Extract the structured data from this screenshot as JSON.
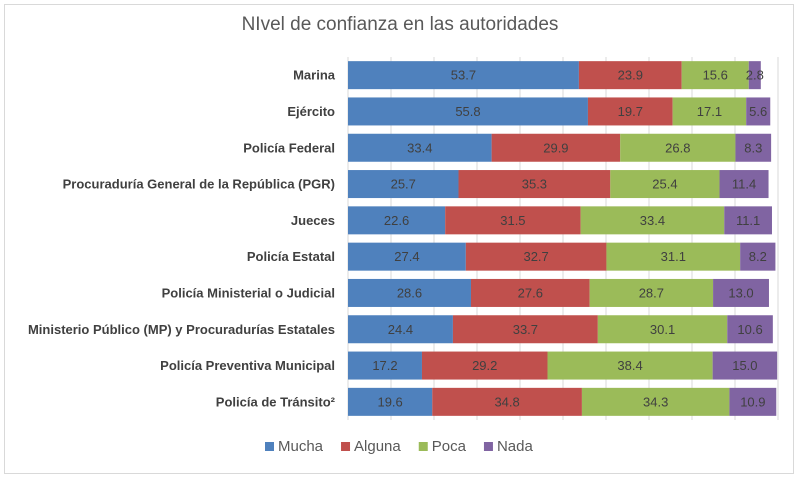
{
  "chart_data": {
    "type": "bar",
    "orientation": "horizontal",
    "stacked": true,
    "title": "NIvel de confianza en las autoridades",
    "categories": [
      "Marina",
      "Ejército",
      "Policía Federal",
      "Procuraduría General de la República (PGR)",
      "Jueces",
      "Policía Estatal",
      "Policía Ministerial o Judicial",
      "Ministerio Público (MP) y Procuradurías Estatales",
      "Policía Preventiva Municipal",
      "Policía de Tránsito²"
    ],
    "series": [
      {
        "name": "Mucha",
        "color": "#4f81bd",
        "values": [
          53.7,
          55.8,
          33.4,
          25.7,
          22.6,
          27.4,
          28.6,
          24.4,
          17.2,
          19.6
        ]
      },
      {
        "name": "Alguna",
        "color": "#c0504d",
        "values": [
          23.9,
          19.7,
          29.9,
          35.3,
          31.5,
          32.7,
          27.6,
          33.7,
          29.2,
          34.8
        ]
      },
      {
        "name": "Poca",
        "color": "#9bbb59",
        "values": [
          15.6,
          17.1,
          26.8,
          25.4,
          33.4,
          31.1,
          28.7,
          30.1,
          38.4,
          34.3
        ]
      },
      {
        "name": "Nada",
        "color": "#8064a2",
        "values": [
          2.8,
          5.6,
          8.3,
          11.4,
          11.1,
          8.2,
          13.0,
          10.6,
          15.0,
          10.9
        ]
      }
    ],
    "xlim": [
      0,
      100
    ],
    "grid": true,
    "axis_labels_shown": false,
    "data_labels": true,
    "legend": "bottom"
  }
}
